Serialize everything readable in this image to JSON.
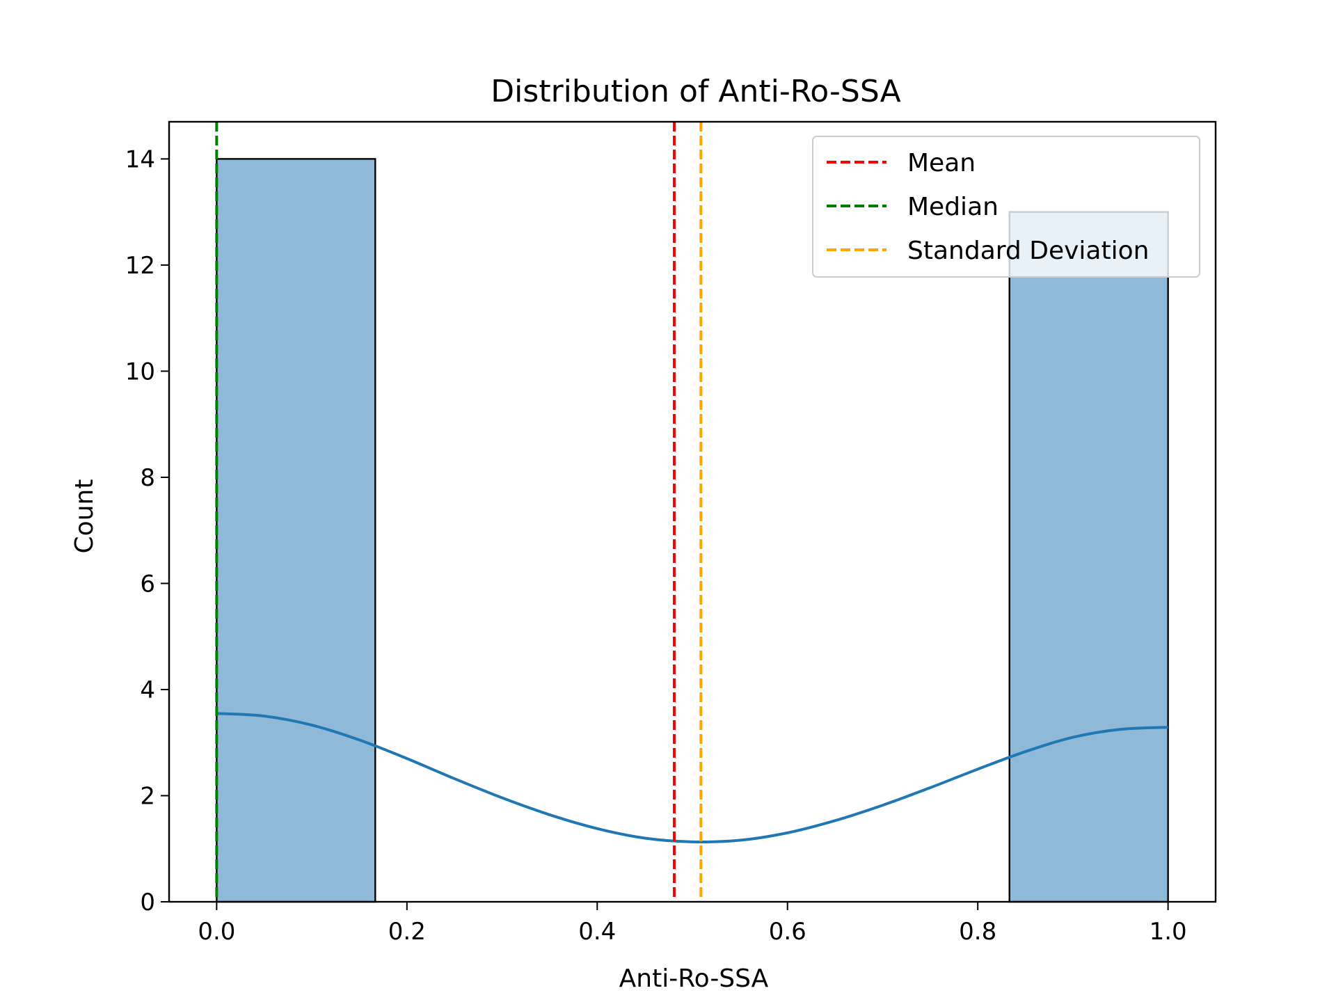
{
  "chart_data": {
    "type": "bar",
    "title": "Distribution of Anti-Ro-SSA",
    "xlabel": "Anti-Ro-SSA",
    "ylabel": "Count",
    "xlim": [
      -0.05,
      1.05
    ],
    "ylim": [
      0,
      14.7
    ],
    "xticks": [
      "0.0",
      "0.2",
      "0.4",
      "0.6",
      "0.8",
      "1.0"
    ],
    "xtick_values": [
      0.0,
      0.2,
      0.4,
      0.6,
      0.8,
      1.0
    ],
    "yticks": [
      "0",
      "2",
      "4",
      "6",
      "8",
      "10",
      "12",
      "14"
    ],
    "ytick_values": [
      0,
      2,
      4,
      6,
      8,
      10,
      12,
      14
    ],
    "bars": [
      {
        "x0": 0.0,
        "x1": 0.1667,
        "count": 14
      },
      {
        "x0": 0.1667,
        "x1": 0.3333,
        "count": 0
      },
      {
        "x0": 0.3333,
        "x1": 0.5,
        "count": 0
      },
      {
        "x0": 0.5,
        "x1": 0.6667,
        "count": 0
      },
      {
        "x0": 0.6667,
        "x1": 0.8333,
        "count": 0
      },
      {
        "x0": 0.8333,
        "x1": 1.0,
        "count": 13
      }
    ],
    "kde": {
      "x": [
        0.0,
        0.05,
        0.1,
        0.15,
        0.2,
        0.25,
        0.3,
        0.35,
        0.4,
        0.45,
        0.5,
        0.55,
        0.6,
        0.65,
        0.7,
        0.75,
        0.8,
        0.85,
        0.9,
        0.95,
        1.0
      ],
      "y": [
        3.55,
        3.5,
        3.33,
        3.05,
        2.7,
        2.32,
        1.96,
        1.64,
        1.38,
        1.2,
        1.13,
        1.16,
        1.3,
        1.53,
        1.82,
        2.15,
        2.5,
        2.83,
        3.1,
        3.25,
        3.29
      ]
    },
    "vlines": [
      {
        "name": "Mean",
        "x": 0.481,
        "color": "#ff0000"
      },
      {
        "name": "Median",
        "x": 0.0,
        "color": "#008000"
      },
      {
        "name": "Standard Deviation",
        "x": 0.509,
        "color": "#ffa500"
      }
    ],
    "bar_fill": "#8fb9d9",
    "bar_edge": "#000000",
    "kde_color": "#1f77b4",
    "legend_loc": "top-right",
    "grid": false
  }
}
